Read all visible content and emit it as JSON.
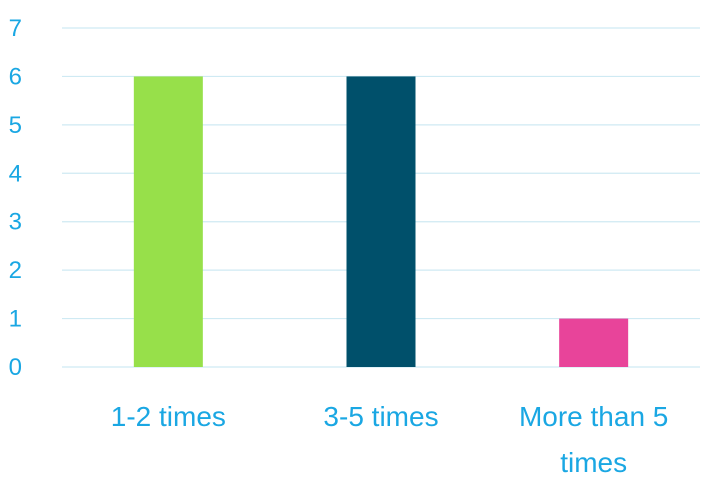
{
  "chart_data": {
    "type": "bar",
    "title": "",
    "xlabel": "",
    "ylabel": "",
    "categories": [
      [
        "1-2 times"
      ],
      [
        "3-5 times"
      ],
      [
        "More than 5",
        "times"
      ]
    ],
    "values": [
      6,
      6,
      1
    ],
    "ylim": [
      0,
      7
    ],
    "yticks": [
      0,
      1,
      2,
      3,
      4,
      5,
      6,
      7
    ],
    "grid": true,
    "legend": "none"
  },
  "colors": {
    "bars": [
      "#97E04A",
      "#00506B",
      "#E8449A"
    ],
    "grid": "#CFEAF3",
    "text": "#1AA7E3"
  }
}
